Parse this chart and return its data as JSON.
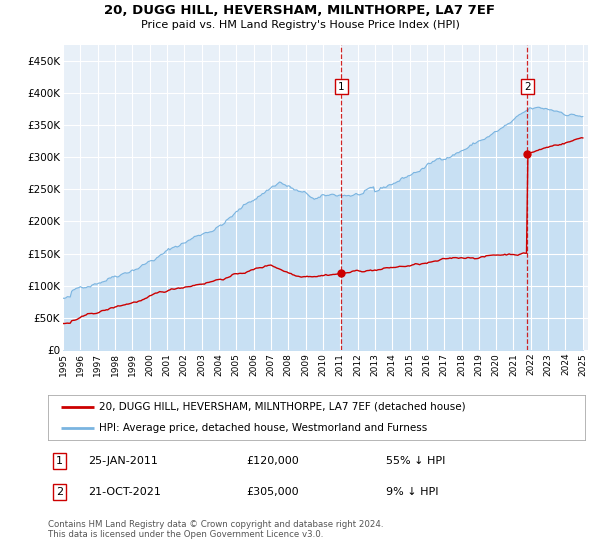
{
  "title": "20, DUGG HILL, HEVERSHAM, MILNTHORPE, LA7 7EF",
  "subtitle": "Price paid vs. HM Land Registry's House Price Index (HPI)",
  "ylim": [
    0,
    475000
  ],
  "yticks": [
    0,
    50000,
    100000,
    150000,
    200000,
    250000,
    300000,
    350000,
    400000,
    450000
  ],
  "ytick_labels": [
    "£0",
    "£50K",
    "£100K",
    "£150K",
    "£200K",
    "£250K",
    "£300K",
    "£350K",
    "£400K",
    "£450K"
  ],
  "xtick_years": [
    1995,
    1996,
    1997,
    1998,
    1999,
    2000,
    2001,
    2002,
    2003,
    2004,
    2005,
    2006,
    2007,
    2008,
    2009,
    2010,
    2011,
    2012,
    2013,
    2014,
    2015,
    2016,
    2017,
    2018,
    2019,
    2020,
    2021,
    2022,
    2023,
    2024,
    2025
  ],
  "hpi_color": "#7ab4e0",
  "hpi_fill_color": "#c5dff3",
  "price_color": "#cc0000",
  "background_color": "#e8f0f8",
  "grid_color": "#ffffff",
  "marker1_date_x": 2011.07,
  "marker1_y": 120000,
  "marker2_date_x": 2021.8,
  "marker2_y": 305000,
  "legend_label_price": "20, DUGG HILL, HEVERSHAM, MILNTHORPE, LA7 7EF (detached house)",
  "legend_label_hpi": "HPI: Average price, detached house, Westmorland and Furness",
  "annotation1_date": "25-JAN-2011",
  "annotation1_price": "£120,000",
  "annotation1_pct": "55% ↓ HPI",
  "annotation2_date": "21-OCT-2021",
  "annotation2_price": "£305,000",
  "annotation2_pct": "9% ↓ HPI",
  "footnote": "Contains HM Land Registry data © Crown copyright and database right 2024.\nThis data is licensed under the Open Government Licence v3.0."
}
